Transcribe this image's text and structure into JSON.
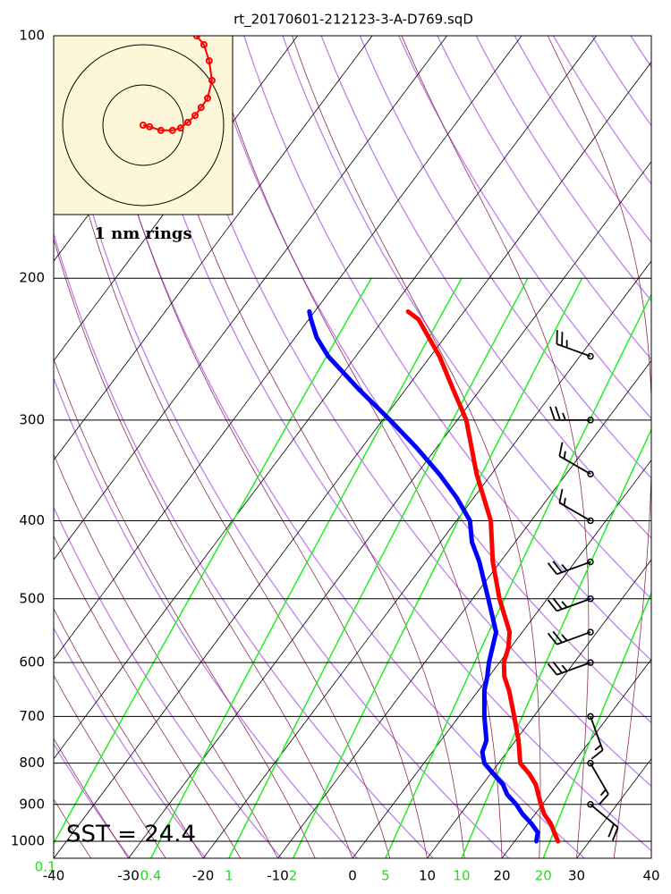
{
  "chart_data": {
    "type": "skewt",
    "title": "rt_20170601-212123-3-A-D769.sqD",
    "annotation": "SST = 24.4",
    "xlim": [
      -40,
      40
    ],
    "ylim": [
      1050,
      100
    ],
    "xticks": [
      -40,
      -30,
      -20,
      -10,
      0,
      10,
      20,
      30,
      40
    ],
    "yticks": [
      100,
      200,
      300,
      400,
      500,
      600,
      700,
      800,
      900,
      1000
    ],
    "mixing_ratio_ticks": [
      0.1,
      0.4,
      1,
      2,
      5,
      10,
      20
    ],
    "grid": true,
    "series": [
      {
        "color": "#ff0000",
        "pressure": [
          1000,
          975,
          950,
          925,
          900,
          850,
          825,
          800,
          750,
          700,
          650,
          625,
          600,
          575,
          550,
          500,
          450,
          400,
          375,
          350,
          300,
          275,
          250,
          225,
          220
        ],
        "values": [
          25.8,
          24.4,
          23.0,
          21.2,
          19.8,
          17.1,
          15.2,
          12.9,
          10.4,
          7.4,
          4.1,
          2.1,
          0.6,
          -0.3,
          -1.7,
          -6.4,
          -11.0,
          -15.4,
          -18.6,
          -22.0,
          -28.8,
          -33.6,
          -38.8,
          -45.3,
          -47.5
        ]
      },
      {
        "color": "#0000ff",
        "pressure": [
          1000,
          975,
          950,
          925,
          900,
          875,
          850,
          825,
          800,
          775,
          750,
          700,
          650,
          625,
          600,
          550,
          500,
          450,
          425,
          400,
          375,
          350,
          325,
          300,
          275,
          250,
          237,
          225,
          220
        ],
        "values": [
          22.9,
          22.2,
          20.4,
          18.3,
          16.5,
          14.3,
          12.7,
          10.4,
          8.1,
          6.7,
          6.1,
          3.4,
          0.8,
          -0.2,
          -1.4,
          -3.5,
          -7.9,
          -12.8,
          -15.8,
          -18.2,
          -22.2,
          -27.0,
          -32.6,
          -39.0,
          -46.2,
          -53.7,
          -57.1,
          -59.7,
          -60.7
        ]
      }
    ],
    "wind": {
      "pressure": [
        250,
        300,
        350,
        400,
        450,
        500,
        550,
        600,
        700,
        800,
        900
      ],
      "direction": [
        290,
        270,
        300,
        300,
        250,
        250,
        250,
        250,
        160,
        150,
        130
      ],
      "speed": [
        25,
        25,
        15,
        15,
        25,
        25,
        25,
        25,
        15,
        15,
        20
      ]
    },
    "hodograph": {
      "label": "1 nm rings",
      "color": "#ff0000",
      "rings": [
        1,
        2
      ],
      "x": [
        0,
        0.16,
        0.44,
        0.73,
        0.93,
        1.11,
        1.29,
        1.44,
        1.6,
        1.71,
        1.64,
        1.51,
        1.33
      ],
      "y": [
        0,
        -0.04,
        -0.13,
        -0.13,
        -0.07,
        0.07,
        0.24,
        0.44,
        0.67,
        1.11,
        1.6,
        2.0,
        2.22
      ]
    }
  }
}
